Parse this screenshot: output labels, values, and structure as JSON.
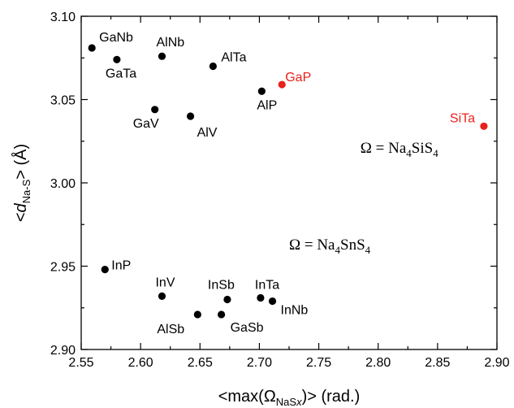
{
  "chart_data": {
    "type": "scatter",
    "xlabel": {
      "pre": "<max(Ω",
      "sub": "NaS",
      "sub_italic": "x",
      "post": ")> (rad.)"
    },
    "ylabel": {
      "pre": "<",
      "italic": "d",
      "sub": "Na-S",
      "post": "> (Å)"
    },
    "xlim": [
      2.55,
      2.9
    ],
    "ylim": [
      2.9,
      3.1
    ],
    "x_ticks": [
      "2.55",
      "2.60",
      "2.65",
      "2.70",
      "2.75",
      "2.80",
      "2.85",
      "2.90"
    ],
    "y_ticks": [
      "2.90",
      "2.95",
      "3.00",
      "3.05",
      "3.10"
    ],
    "points": [
      {
        "label": "GaNb",
        "x": 2.559,
        "y": 3.081,
        "color": "#000000"
      },
      {
        "label": "GaTa",
        "x": 2.58,
        "y": 3.074,
        "color": "#000000"
      },
      {
        "label": "AlNb",
        "x": 2.618,
        "y": 3.076,
        "color": "#000000"
      },
      {
        "label": "AlTa",
        "x": 2.661,
        "y": 3.07,
        "color": "#000000"
      },
      {
        "label": "GaP",
        "x": 2.719,
        "y": 3.059,
        "color": "#e8211d"
      },
      {
        "label": "AlP",
        "x": 2.702,
        "y": 3.055,
        "color": "#000000"
      },
      {
        "label": "GaV",
        "x": 2.612,
        "y": 3.044,
        "color": "#000000"
      },
      {
        "label": "AlV",
        "x": 2.642,
        "y": 3.04,
        "color": "#000000"
      },
      {
        "label": "SiTa",
        "x": 2.889,
        "y": 3.034,
        "color": "#e8211d"
      },
      {
        "label": "InP",
        "x": 2.57,
        "y": 2.948,
        "color": "#000000"
      },
      {
        "label": "InV",
        "x": 2.618,
        "y": 2.932,
        "color": "#000000"
      },
      {
        "label": "InSb",
        "x": 2.673,
        "y": 2.93,
        "color": "#000000"
      },
      {
        "label": "InTa",
        "x": 2.701,
        "y": 2.931,
        "color": "#000000"
      },
      {
        "label": "InNb",
        "x": 2.711,
        "y": 2.929,
        "color": "#000000"
      },
      {
        "label": "AlSb",
        "x": 2.648,
        "y": 2.921,
        "color": "#000000"
      },
      {
        "label": "GaSb",
        "x": 2.668,
        "y": 2.921,
        "color": "#000000"
      }
    ],
    "annotations": [
      {
        "pre": "Ω = Na",
        "s1": "4",
        "mid": "SiS",
        "s2": "4",
        "x": 2.785,
        "y": 3.018
      },
      {
        "pre": "Ω = Na",
        "s1": "4",
        "mid": "SnS",
        "s2": "4",
        "x": 2.725,
        "y": 2.96
      }
    ]
  }
}
